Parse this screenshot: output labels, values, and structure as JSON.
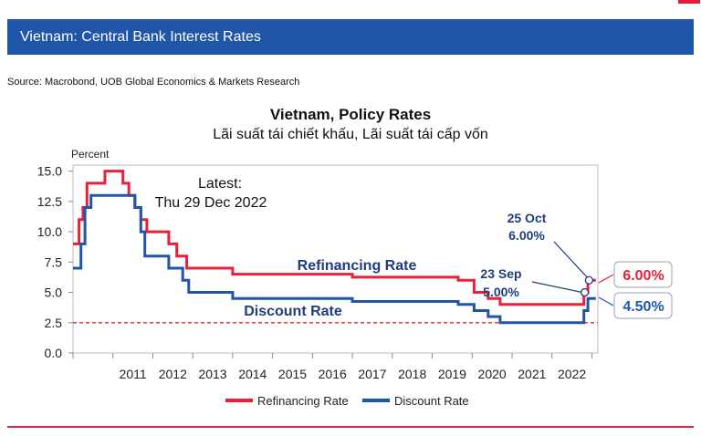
{
  "header": {
    "title": "Vietnam: Central Bank Interest Rates",
    "source": "Source: Macrobond, UOB Global Economics & Markets Research"
  },
  "chart_data": {
    "type": "line",
    "title": "Vietnam, Policy Rates",
    "subtitle": "Lãi suất tái chiết khấu, Lãi suất tái cấp vốn",
    "ylabel": "Percent",
    "ylim": [
      0,
      16
    ],
    "yticks": [
      "15.0",
      "12.5",
      "10.0",
      "7.5",
      "5.0",
      "2.5",
      "0.0"
    ],
    "xticks": [
      "2011",
      "2012",
      "2013",
      "2014",
      "2015",
      "2016",
      "2017",
      "2018",
      "2019",
      "2020",
      "2021",
      "2022"
    ],
    "xlim": [
      2010.0,
      2023.15
    ],
    "reference_line": 2.5,
    "latest_note": [
      "Latest:",
      "Thu 29 Dec 2022"
    ],
    "legend": [
      "Refinancing Rate",
      "Discount Rate"
    ],
    "series": [
      {
        "name": "Refinancing Rate",
        "color": "#e8203a",
        "points": [
          [
            2010.0,
            9.0
          ],
          [
            2010.15,
            9.0
          ],
          [
            2010.15,
            11.0
          ],
          [
            2010.25,
            11.0
          ],
          [
            2010.25,
            12.0
          ],
          [
            2010.35,
            12.0
          ],
          [
            2010.35,
            14.0
          ],
          [
            2010.8,
            14.0
          ],
          [
            2010.8,
            15.0
          ],
          [
            2011.25,
            15.0
          ],
          [
            2011.25,
            14.0
          ],
          [
            2011.4,
            14.0
          ],
          [
            2011.4,
            13.0
          ],
          [
            2011.55,
            13.0
          ],
          [
            2011.55,
            12.0
          ],
          [
            2011.7,
            12.0
          ],
          [
            2011.7,
            11.0
          ],
          [
            2011.85,
            11.0
          ],
          [
            2011.85,
            10.0
          ],
          [
            2012.4,
            10.0
          ],
          [
            2012.4,
            9.0
          ],
          [
            2012.6,
            9.0
          ],
          [
            2012.6,
            8.0
          ],
          [
            2012.85,
            8.0
          ],
          [
            2012.85,
            7.0
          ],
          [
            2014.0,
            7.0
          ],
          [
            2014.0,
            6.5
          ],
          [
            2017.0,
            6.5
          ],
          [
            2017.0,
            6.25
          ],
          [
            2019.65,
            6.25
          ],
          [
            2019.65,
            6.0
          ],
          [
            2020.05,
            6.0
          ],
          [
            2020.05,
            5.0
          ],
          [
            2020.4,
            5.0
          ],
          [
            2020.4,
            4.5
          ],
          [
            2020.7,
            4.5
          ],
          [
            2020.7,
            4.0
          ],
          [
            2022.8,
            4.0
          ],
          [
            2022.8,
            5.0
          ],
          [
            2022.9,
            5.0
          ],
          [
            2022.9,
            6.0
          ],
          [
            2023.1,
            6.0
          ]
        ]
      },
      {
        "name": "Discount Rate",
        "color": "#1f56a8",
        "points": [
          [
            2010.0,
            7.0
          ],
          [
            2010.2,
            7.0
          ],
          [
            2010.2,
            9.0
          ],
          [
            2010.3,
            9.0
          ],
          [
            2010.3,
            12.0
          ],
          [
            2010.45,
            12.0
          ],
          [
            2010.45,
            13.0
          ],
          [
            2011.55,
            13.0
          ],
          [
            2011.55,
            12.0
          ],
          [
            2011.7,
            12.0
          ],
          [
            2011.7,
            10.0
          ],
          [
            2011.8,
            10.0
          ],
          [
            2011.8,
            8.0
          ],
          [
            2012.4,
            8.0
          ],
          [
            2012.4,
            7.0
          ],
          [
            2012.75,
            7.0
          ],
          [
            2012.75,
            6.0
          ],
          [
            2012.9,
            6.0
          ],
          [
            2012.9,
            5.0
          ],
          [
            2014.0,
            5.0
          ],
          [
            2014.0,
            4.5
          ],
          [
            2017.0,
            4.5
          ],
          [
            2017.0,
            4.25
          ],
          [
            2019.65,
            4.25
          ],
          [
            2019.65,
            4.0
          ],
          [
            2020.05,
            4.0
          ],
          [
            2020.05,
            3.5
          ],
          [
            2020.4,
            3.5
          ],
          [
            2020.4,
            3.0
          ],
          [
            2020.7,
            3.0
          ],
          [
            2020.7,
            2.5
          ],
          [
            2022.8,
            2.5
          ],
          [
            2022.8,
            3.5
          ],
          [
            2022.9,
            3.5
          ],
          [
            2022.9,
            4.5
          ],
          [
            2023.1,
            4.5
          ]
        ]
      }
    ],
    "annotations": [
      {
        "text": "Refinancing Rate",
        "color": "#1f3d7a"
      },
      {
        "text": "Discount Rate",
        "color": "#1f3d7a"
      },
      {
        "date": "23 Sep",
        "value": "5.00%",
        "color": "#1f3d7a"
      },
      {
        "date": "25 Oct",
        "value": "6.00%",
        "color": "#1f3d7a"
      }
    ],
    "end_labels": [
      {
        "text": "6.00%",
        "color": "#e8203a"
      },
      {
        "text": "4.50%",
        "color": "#1f56a8"
      }
    ]
  }
}
